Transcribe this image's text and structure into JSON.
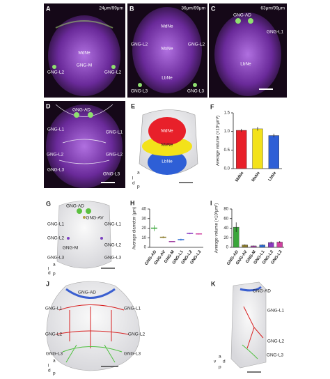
{
  "panels": [
    {
      "letter": "A",
      "scale": "24μm/99μm",
      "labels": [
        "MdNe",
        "GNG-M",
        "GNG-L2",
        "GNG-L2"
      ]
    },
    {
      "letter": "B",
      "scale": "36μm/99μm",
      "labels": [
        "MdNe",
        "MxNe",
        "GNG-L2",
        "GNG-L2",
        "LbNe",
        "GNG-L3",
        "GNG-L3"
      ]
    },
    {
      "letter": "C",
      "scale": "63μm/99μm",
      "labels": [
        "GNG-AD",
        "GNG-L1",
        "LbNe"
      ]
    },
    {
      "letter": "D",
      "labels": [
        "GNG-AD",
        "GNG-L1",
        "GNG-L1",
        "GNG-L2",
        "GNG-L2",
        "GNG-L3",
        "GNG-L3"
      ]
    },
    {
      "letter": "E",
      "labels": [
        "MdNe",
        "MxNe",
        "LbNe"
      ],
      "compass": [
        "a",
        "l",
        "d",
        "p"
      ]
    },
    {
      "letter": "G",
      "labels": [
        "GNG-AD",
        "GNG-AV",
        "GNG-L1",
        "GNG-L1",
        "GNG-L2",
        "GNG-M",
        "GNG-L2",
        "GNG-L3",
        "GNG-L3"
      ],
      "compass": [
        "a",
        "l",
        "d",
        "p"
      ]
    },
    {
      "letter": "J",
      "labels": [
        "GNG-AD",
        "GNG-L1",
        "GNG-L1",
        "GNG-L2",
        "GNG-L2",
        "GNG-L3",
        "GNG-L3"
      ],
      "compass": [
        "a",
        "l",
        "d",
        "p"
      ]
    },
    {
      "letter": "K",
      "labels": [
        "GNG-AD",
        "GNG-L1",
        "GNG-L2",
        "GNG-L3"
      ],
      "compass": [
        "a",
        "v",
        "d",
        "p"
      ]
    }
  ],
  "chart_data": [
    {
      "type": "bar",
      "panel": "F",
      "y_label": "Average volume (×10⁵μm³)",
      "categories": [
        "MdNe",
        "MxNe",
        "LbNe"
      ],
      "values": [
        1.03,
        1.07,
        0.89
      ],
      "errors": [
        0.04,
        0.05,
        0.05
      ],
      "colors": [
        "#e8202a",
        "#f3e21a",
        "#2e5fd6"
      ],
      "ylim": [
        0,
        1.5
      ],
      "yticks": [
        {
          "value": 0,
          "label": "0.0"
        },
        {
          "value": 0.5,
          "label": "0.5"
        },
        {
          "value": 1,
          "label": "1.0"
        },
        {
          "value": 1.5,
          "label": "1.5"
        }
      ]
    },
    {
      "type": "mean",
      "panel": "H",
      "y_label": "Average diameter (μm)",
      "categories": [
        "GNG-AD",
        "GNG-AV",
        "GNG-M",
        "GNG-L1",
        "GNG-L2",
        "GNG-L3"
      ],
      "values": [
        20,
        10.5,
        6,
        8,
        14.5,
        14
      ],
      "errors": [
        3,
        1,
        0.5,
        1,
        0.8,
        0.6
      ],
      "colors": [
        "#3aa63a",
        "#8a7a2a",
        "#a040a0",
        "#2a6ad0",
        "#8a3ac0",
        "#d040a0"
      ],
      "ylim": [
        0,
        40
      ],
      "yticks": [
        0,
        10,
        20,
        30,
        40
      ]
    },
    {
      "type": "bar",
      "panel": "I",
      "y_label": "Average volume (×10³μm³)",
      "categories": [
        "GNG-AD",
        "GNG-AV",
        "GNG-M",
        "GNG-L1",
        "GNG-L2",
        "GNG-L3"
      ],
      "values": [
        42,
        5,
        3,
        5,
        10,
        11
      ],
      "errors": [
        10,
        1,
        0.5,
        1,
        2,
        2
      ],
      "colors": [
        "#3aa63a",
        "#8a7a2a",
        "#a040a0",
        "#2a6ad0",
        "#8a3ac0",
        "#d040a0"
      ],
      "ylim": [
        0,
        80
      ],
      "yticks": [
        0,
        20,
        40,
        60,
        80
      ]
    }
  ]
}
